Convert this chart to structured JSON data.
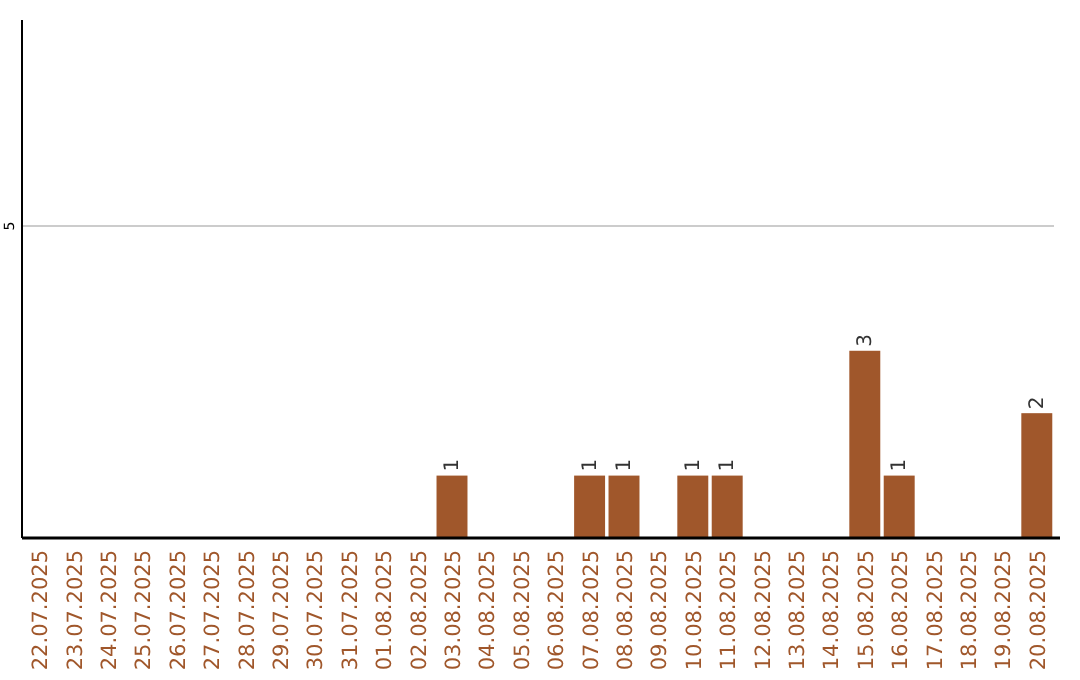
{
  "chart_data": {
    "type": "bar",
    "categories": [
      "22.07.2025",
      "23.07.2025",
      "24.07.2025",
      "25.07.2025",
      "26.07.2025",
      "27.07.2025",
      "28.07.2025",
      "29.07.2025",
      "30.07.2025",
      "31.07.2025",
      "01.08.2025",
      "02.08.2025",
      "03.08.2025",
      "04.08.2025",
      "05.08.2025",
      "06.08.2025",
      "07.08.2025",
      "08.08.2025",
      "09.08.2025",
      "10.08.2025",
      "11.08.2025",
      "12.08.2025",
      "13.08.2025",
      "14.08.2025",
      "15.08.2025",
      "16.08.2025",
      "17.08.2025",
      "18.08.2025",
      "19.08.2025",
      "20.08.2025"
    ],
    "values": [
      null,
      null,
      null,
      null,
      null,
      null,
      null,
      null,
      null,
      null,
      null,
      null,
      1,
      null,
      null,
      null,
      1,
      1,
      null,
      1,
      1,
      null,
      null,
      null,
      3,
      1,
      null,
      null,
      null,
      2
    ],
    "color": "#a0572b",
    "ylim": [
      0,
      8.3
    ],
    "yticks": [
      5
    ],
    "grid": "y",
    "data_labels": true
  }
}
